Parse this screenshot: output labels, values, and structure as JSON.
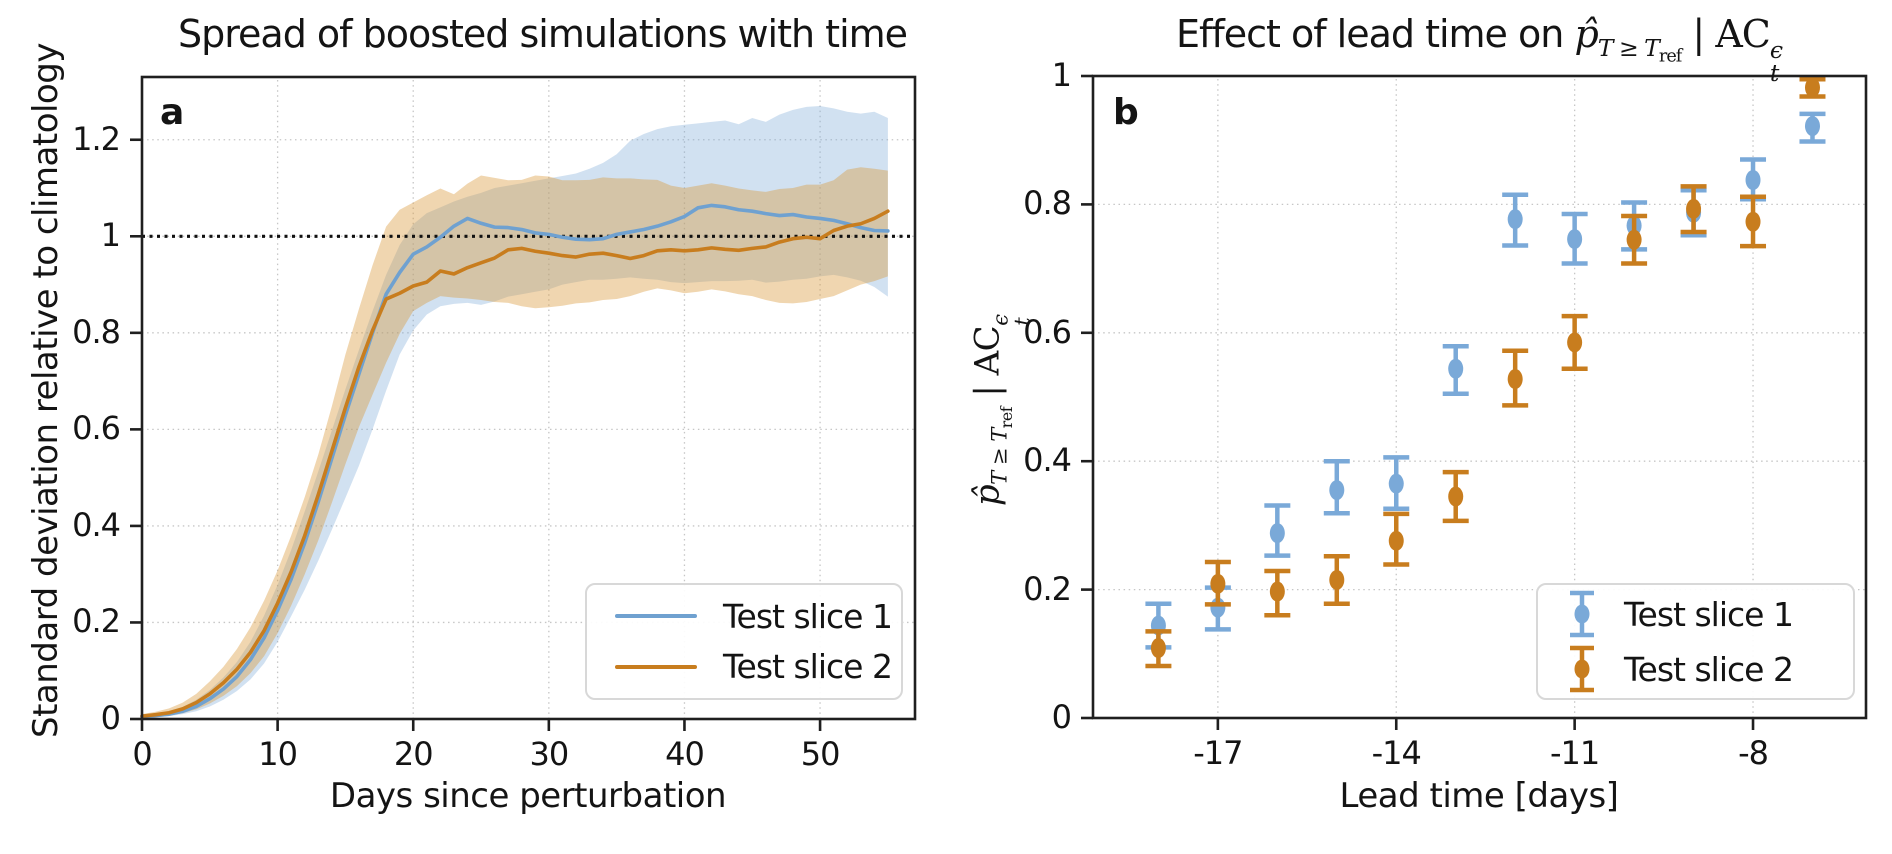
{
  "panels": {
    "a": "a",
    "b": "b"
  },
  "chart_data": [
    {
      "panel": "a",
      "type": "line",
      "title": "Spread of boosted simulations with time",
      "xlabel": "Days since perturbation",
      "ylabel": "Standard deviation relative to climatology",
      "xlim": [
        0,
        57
      ],
      "ylim": [
        0,
        1.33
      ],
      "xticks": [
        0,
        10,
        20,
        30,
        40,
        50
      ],
      "xtick_labels": [
        "0",
        "10",
        "20",
        "30",
        "40",
        "50"
      ],
      "yticks": [
        0,
        0.2,
        0.4,
        0.6,
        0.8,
        1,
        1.2
      ],
      "ytick_labels": [
        "0",
        "0.2",
        "0.4",
        "0.6",
        "0.8",
        "1",
        "1.2"
      ],
      "grid": true,
      "grid_style": "dotted",
      "reference_line_y": 1.0,
      "legend_position": "lower right",
      "x_start": 0,
      "x_step": 1,
      "series": [
        {
          "name": "Test slice 1",
          "color": "#6fa1d0",
          "band_color": "rgba(122,169,214,0.35)",
          "mean": [
            0.005,
            0.007,
            0.01,
            0.016,
            0.026,
            0.042,
            0.062,
            0.088,
            0.123,
            0.168,
            0.225,
            0.29,
            0.365,
            0.45,
            0.54,
            0.63,
            0.715,
            0.8,
            0.88,
            0.925,
            0.963,
            0.978,
            0.998,
            1.021,
            1.037,
            1.027,
            1.019,
            1.018,
            1.014,
            1.007,
            1.004,
            0.998,
            0.994,
            0.993,
            0.995,
            1.004,
            1.009,
            1.014,
            1.021,
            1.03,
            1.041,
            1.059,
            1.064,
            1.061,
            1.055,
            1.052,
            1.047,
            1.043,
            1.045,
            1.04,
            1.037,
            1.033,
            1.026,
            1.018,
            1.012,
            1.011
          ],
          "upper": [
            0.008,
            0.011,
            0.016,
            0.025,
            0.04,
            0.06,
            0.086,
            0.118,
            0.16,
            0.214,
            0.278,
            0.35,
            0.43,
            0.513,
            0.598,
            0.683,
            0.765,
            0.845,
            0.92,
            0.982,
            1.025,
            1.048,
            1.06,
            1.072,
            1.082,
            1.09,
            1.1,
            1.105,
            1.11,
            1.115,
            1.12,
            1.125,
            1.13,
            1.14,
            1.152,
            1.17,
            1.198,
            1.212,
            1.222,
            1.228,
            1.231,
            1.234,
            1.237,
            1.24,
            1.232,
            1.245,
            1.237,
            1.252,
            1.262,
            1.268,
            1.27,
            1.265,
            1.258,
            1.254,
            1.258,
            1.245
          ],
          "lower": [
            0.003,
            0.004,
            0.006,
            0.01,
            0.016,
            0.026,
            0.04,
            0.058,
            0.082,
            0.115,
            0.16,
            0.213,
            0.268,
            0.328,
            0.392,
            0.458,
            0.525,
            0.6,
            0.68,
            0.755,
            0.805,
            0.838,
            0.855,
            0.86,
            0.862,
            0.858,
            0.865,
            0.875,
            0.88,
            0.885,
            0.89,
            0.9,
            0.905,
            0.91,
            0.91,
            0.912,
            0.915,
            0.912,
            0.91,
            0.905,
            0.903,
            0.905,
            0.907,
            0.907,
            0.908,
            0.91,
            0.904,
            0.906,
            0.91,
            0.912,
            0.917,
            0.92,
            0.915,
            0.908,
            0.895,
            0.875
          ]
        },
        {
          "name": "Test slice 2",
          "color": "#c87d1e",
          "band_color": "rgba(218,152,58,0.40)",
          "mean": [
            0.006,
            0.009,
            0.013,
            0.021,
            0.034,
            0.052,
            0.075,
            0.103,
            0.138,
            0.183,
            0.24,
            0.305,
            0.38,
            0.465,
            0.555,
            0.645,
            0.73,
            0.805,
            0.87,
            0.882,
            0.897,
            0.905,
            0.928,
            0.922,
            0.935,
            0.945,
            0.955,
            0.972,
            0.975,
            0.969,
            0.965,
            0.96,
            0.957,
            0.963,
            0.965,
            0.96,
            0.954,
            0.96,
            0.97,
            0.972,
            0.97,
            0.972,
            0.976,
            0.973,
            0.971,
            0.975,
            0.978,
            0.988,
            0.995,
            0.998,
            0.995,
            1.012,
            1.021,
            1.026,
            1.037,
            1.052
          ],
          "upper": [
            0.01,
            0.015,
            0.022,
            0.034,
            0.052,
            0.078,
            0.108,
            0.145,
            0.19,
            0.245,
            0.308,
            0.38,
            0.46,
            0.548,
            0.648,
            0.755,
            0.85,
            0.94,
            1.02,
            1.055,
            1.07,
            1.085,
            1.099,
            1.087,
            1.109,
            1.126,
            1.121,
            1.116,
            1.117,
            1.126,
            1.124,
            1.116,
            1.116,
            1.117,
            1.122,
            1.12,
            1.12,
            1.118,
            1.117,
            1.105,
            1.1,
            1.105,
            1.11,
            1.105,
            1.099,
            1.095,
            1.092,
            1.098,
            1.1,
            1.107,
            1.107,
            1.116,
            1.138,
            1.143,
            1.14,
            1.136
          ],
          "lower": [
            0.003,
            0.005,
            0.007,
            0.012,
            0.02,
            0.032,
            0.048,
            0.068,
            0.095,
            0.13,
            0.178,
            0.235,
            0.3,
            0.37,
            0.448,
            0.528,
            0.605,
            0.672,
            0.738,
            0.798,
            0.845,
            0.862,
            0.876,
            0.873,
            0.871,
            0.868,
            0.864,
            0.862,
            0.855,
            0.851,
            0.853,
            0.856,
            0.861,
            0.863,
            0.868,
            0.87,
            0.876,
            0.885,
            0.892,
            0.888,
            0.882,
            0.885,
            0.89,
            0.886,
            0.88,
            0.876,
            0.868,
            0.862,
            0.861,
            0.864,
            0.87,
            0.876,
            0.888,
            0.9,
            0.907,
            0.917
          ]
        }
      ]
    },
    {
      "panel": "b",
      "type": "scatter",
      "title_prefix": "Effect of lead time on ",
      "math": {
        "phat": "p̂",
        "sub": "T ≥ T",
        "subsub": "ref",
        "bar": "|",
        "ac": "AC",
        "ac_sup": "ϵ",
        "ac_sub": "t"
      },
      "xlabel": "Lead time [days]",
      "xlim": [
        -19.1,
        -6.1
      ],
      "ylim": [
        0,
        1
      ],
      "xticks": [
        -17,
        -14,
        -11,
        -8
      ],
      "xtick_labels": [
        "-17",
        "-14",
        "-11",
        "-8"
      ],
      "yticks": [
        0,
        0.2,
        0.4,
        0.6,
        0.8,
        1
      ],
      "ytick_labels": [
        "0",
        "0.2",
        "0.4",
        "0.6",
        "0.8",
        "1"
      ],
      "grid": true,
      "grid_style": "dotted",
      "legend_position": "lower right",
      "x": [
        -18,
        -17,
        -16,
        -15,
        -14,
        -13,
        -12,
        -11,
        -10,
        -9,
        -8,
        -7
      ],
      "series": [
        {
          "name": "Test slice 1",
          "color": "#7aa9d8",
          "values": [
            0.144,
            0.172,
            0.288,
            0.355,
            0.365,
            0.544,
            0.777,
            0.746,
            0.767,
            0.787,
            0.838,
            0.922
          ],
          "err_lo": [
            0.11,
            0.138,
            0.253,
            0.319,
            0.326,
            0.505,
            0.736,
            0.708,
            0.73,
            0.752,
            0.808,
            0.898
          ],
          "err_hi": [
            0.178,
            0.203,
            0.331,
            0.4,
            0.406,
            0.579,
            0.815,
            0.785,
            0.803,
            0.822,
            0.87,
            0.941
          ]
        },
        {
          "name": "Test slice 2",
          "color": "#c87d1e",
          "values": [
            0.109,
            0.209,
            0.197,
            0.215,
            0.276,
            0.345,
            0.528,
            0.585,
            0.745,
            0.793,
            0.773,
            0.982
          ],
          "err_lo": [
            0.081,
            0.177,
            0.16,
            0.178,
            0.239,
            0.307,
            0.487,
            0.544,
            0.708,
            0.757,
            0.735,
            0.968
          ],
          "err_hi": [
            0.135,
            0.243,
            0.229,
            0.252,
            0.318,
            0.383,
            0.572,
            0.626,
            0.782,
            0.828,
            0.812,
            0.995
          ]
        }
      ]
    }
  ]
}
